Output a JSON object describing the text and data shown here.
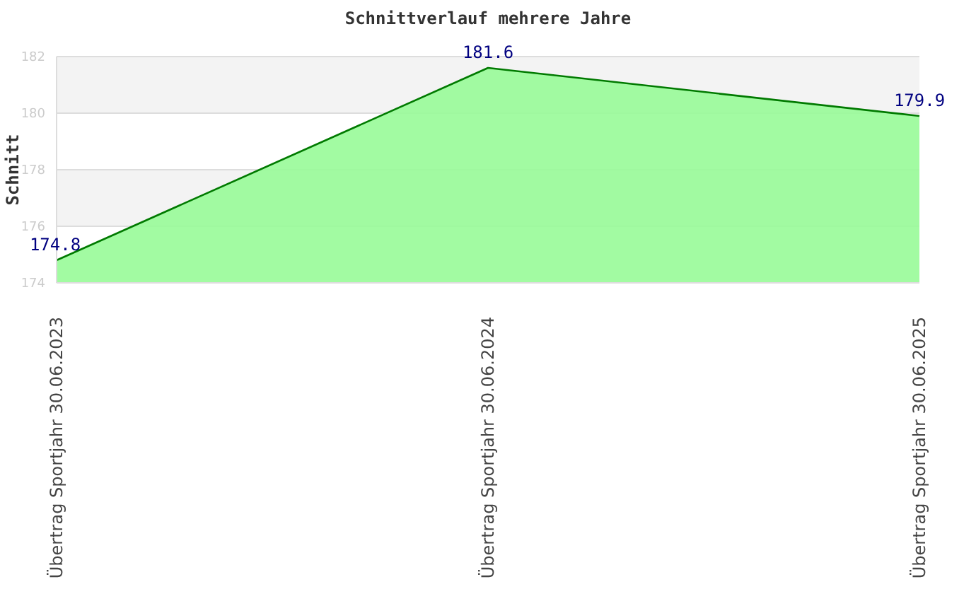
{
  "chart_data": {
    "type": "area",
    "title": "Schnittverlauf mehrere Jahre",
    "ylabel": "Schnitt",
    "categories": [
      "Übertrag Sportjahr 30.06.2023",
      "Übertrag Sportjahr 30.06.2024",
      "Übertrag Sportjahr 30.06.2025"
    ],
    "series": [
      {
        "color": "#98fb98",
        "values": [
          174.8,
          181.6,
          179.9
        ]
      }
    ],
    "ylim": [
      174,
      182
    ],
    "yticks": [
      174,
      176,
      178,
      180,
      182
    ],
    "grid": "y",
    "data_labels": true
  }
}
